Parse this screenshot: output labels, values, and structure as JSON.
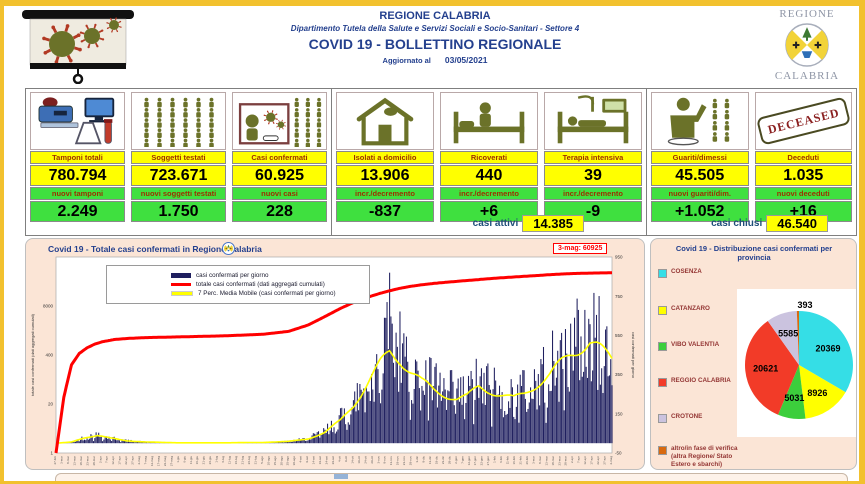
{
  "header": {
    "org": "REGIONE CALABRIA",
    "department": "Dipartimento Tutela della Salute e Servizi Sociali e Socio-Sanitari - Settore 4",
    "title": "COVID 19 - BOLLETTINO REGIONALE",
    "updated_label": "Aggiornato al",
    "updated_date": "03/05/2021",
    "logo_top": "REGIONE",
    "logo_bottom": "CALABRIA"
  },
  "colors": {
    "frame": "#F2C12E",
    "panel_bg": "#FBE5D6",
    "yellow": "#FFFF00",
    "green": "#3FE03F",
    "navy": "#1F1F5F",
    "red": "#FF0000",
    "olive": "#6B7229",
    "header_blue": "#24408E",
    "label_red": "#9C3000",
    "summary_blue": "#1F4E79"
  },
  "stats": {
    "groups": [
      {
        "cards": [
          {
            "icon": "lab-equipment-icon",
            "label": "Tamponi totali",
            "value": "780.794",
            "sub_label": "nuovi tamponi",
            "sub_value": "2.249"
          },
          {
            "icon": "people-grid-icon",
            "label": "Soggetti testati",
            "value": "723.671",
            "sub_label": "nuovi soggetti testati",
            "sub_value": "1.750"
          },
          {
            "icon": "confirmed-cases-icon",
            "label": "Casi confermati",
            "value": "60.925",
            "sub_label": "nuovi casi",
            "sub_value": "228"
          }
        ]
      },
      {
        "cards": [
          {
            "icon": "house-icon",
            "label": "Isolati a domicilio",
            "value": "13.906",
            "sub_label": "incr./decremento",
            "sub_value": "-837"
          },
          {
            "icon": "hospital-bed-icon",
            "label": "Ricoverati",
            "value": "440",
            "sub_label": "incr./decremento",
            "sub_value": "+6"
          },
          {
            "icon": "icu-bed-icon",
            "label": "Terapia intensiva",
            "value": "39",
            "sub_label": "incr./decremento",
            "sub_value": "-9"
          }
        ],
        "summary": {
          "label": "casi attivi",
          "value": "14.385"
        }
      },
      {
        "cards": [
          {
            "icon": "recovered-person-icon",
            "label": "Guariti/dimessi",
            "value": "45.505",
            "sub_label": "nuovi guariti/dim.",
            "sub_value": "+1.052"
          },
          {
            "icon": "deceased-stamp-icon",
            "label": "Deceduti",
            "value": "1.035",
            "sub_label": "nuovi deceduti",
            "sub_value": "+16"
          }
        ],
        "summary": {
          "label": "casi chiusi",
          "value": "46.540"
        }
      }
    ],
    "deceased_stamp_text": "DECEASED"
  },
  "chart_panel": {
    "title": "Covid 19 - Totale casi confermati in Regione Calabria",
    "annotation": "3-mag: 60925"
  },
  "pie_panel": {
    "title": "Covid 19 - Distribuzione casi confermati per provincia"
  },
  "chart_data": [
    {
      "type": "bar",
      "title": "Covid 19 - Totale casi confermati in Regione Calabria",
      "x_axis": {
        "start_date": "2020-02-27",
        "end_date": "2021-05-03",
        "days": 431,
        "tick_every_days": 5,
        "months_it": [
          "gen",
          "feb",
          "mar",
          "apr",
          "mag",
          "giu",
          "lug",
          "ago",
          "set",
          "ott",
          "nov",
          "dic"
        ]
      },
      "left_axis": {
        "scale": "log",
        "ticks": [
          1,
          20,
          400,
          8000
        ],
        "max": 160000,
        "label": "totale casi confermati (dati aggregati cumulati)"
      },
      "right_axis": {
        "ticks": [
          -50,
          150,
          350,
          550,
          750,
          950
        ],
        "min": -50,
        "max": 950,
        "label": "casi confermati per giorno"
      },
      "annotation": {
        "text": "3-mag: 60925",
        "color": "#FF0000",
        "date": "3-mag",
        "value": 60925
      },
      "series": [
        {
          "name": "casi confermati per giorno",
          "type": "bar",
          "axis": "right",
          "color": "#1F1F5F",
          "ma_keyframes": [
            [
              0,
              0
            ],
            [
              12,
              6
            ],
            [
              22,
              28
            ],
            [
              32,
              40
            ],
            [
              42,
              26
            ],
            [
              55,
              12
            ],
            [
              70,
              6
            ],
            [
              95,
              2
            ],
            [
              130,
              2
            ],
            [
              160,
              4
            ],
            [
              180,
              9
            ],
            [
              195,
              22
            ],
            [
              208,
              55
            ],
            [
              220,
              115
            ],
            [
              230,
              195
            ],
            [
              240,
              295
            ],
            [
              250,
              395
            ],
            [
              258,
              465
            ],
            [
              266,
              430
            ],
            [
              274,
              370
            ],
            [
              283,
              312
            ],
            [
              292,
              272
            ],
            [
              301,
              248
            ],
            [
              310,
              226
            ],
            [
              318,
              236
            ],
            [
              327,
              288
            ],
            [
              336,
              268
            ],
            [
              345,
              244
            ],
            [
              354,
              226
            ],
            [
              362,
              252
            ],
            [
              372,
              302
            ],
            [
              382,
              348
            ],
            [
              390,
              402
            ],
            [
              398,
              452
            ],
            [
              406,
              492
            ],
            [
              413,
              522
            ],
            [
              418,
              496
            ],
            [
              424,
              458
            ],
            [
              430,
              422
            ]
          ],
          "spikes": [
            [
              254,
              640
            ],
            [
              256,
              720
            ],
            [
              258,
              870
            ],
            [
              260,
              610
            ],
            [
              404,
              680
            ]
          ]
        },
        {
          "name": "totale casi confermati (dati aggregati cumulati)",
          "type": "line",
          "axis": "left",
          "color": "#FF0000",
          "keyframes": [
            [
              0,
              1
            ],
            [
              6,
              30
            ],
            [
              12,
              220
            ],
            [
              18,
              440
            ],
            [
              24,
              620
            ],
            [
              30,
              780
            ],
            [
              36,
              900
            ],
            [
              45,
              1030
            ],
            [
              55,
              1100
            ],
            [
              70,
              1160
            ],
            [
              95,
              1210
            ],
            [
              130,
              1290
            ],
            [
              160,
              1420
            ],
            [
              180,
              1700
            ],
            [
              195,
              2500
            ],
            [
              208,
              4200
            ],
            [
              220,
              6900
            ],
            [
              230,
              9900
            ],
            [
              240,
              13400
            ],
            [
              250,
              17100
            ],
            [
              258,
              20300
            ],
            [
              266,
              23600
            ],
            [
              274,
              26500
            ],
            [
              283,
              29300
            ],
            [
              292,
              31800
            ],
            [
              301,
              34000
            ],
            [
              310,
              36100
            ],
            [
              318,
              38000
            ],
            [
              327,
              40300
            ],
            [
              336,
              42800
            ],
            [
              345,
              45000
            ],
            [
              354,
              47100
            ],
            [
              362,
              49100
            ],
            [
              372,
              51500
            ],
            [
              382,
              54300
            ],
            [
              390,
              56300
            ],
            [
              398,
              57900
            ],
            [
              406,
              59000
            ],
            [
              413,
              59800
            ],
            [
              420,
              60300
            ],
            [
              430,
              60925
            ]
          ]
        },
        {
          "name": "7 Perc. Media Mobile (casi confermati per giorno)",
          "type": "line",
          "axis": "right",
          "color": "#FFFF00",
          "derived_from": "ma_keyframes"
        }
      ]
    },
    {
      "type": "pie",
      "title": "Covid 19 - Distribuzione casi confermati per provincia",
      "total": 60925,
      "start_angle_deg": 0,
      "direction": "clockwise",
      "slices": [
        {
          "label": "COSENZA",
          "value": 20369,
          "color": "#35DEE6"
        },
        {
          "label": "CATANZARO",
          "value": 8926,
          "color": "#FFFF00"
        },
        {
          "label": "VIBO VALENTIA",
          "value": 5031,
          "color": "#3CCE3C"
        },
        {
          "label": "REGGIO CALABRIA",
          "value": 20621,
          "color": "#F23B28"
        },
        {
          "label": "CROTONE",
          "value": 5585,
          "color": "#CBC3DF"
        },
        {
          "label": "altro/in fase di verifica (altra Regione/ Stato Estero e sbarchi)",
          "value": 393,
          "color": "#D86A10"
        }
      ]
    }
  ],
  "footer": {
    "next_section_visible": true
  }
}
